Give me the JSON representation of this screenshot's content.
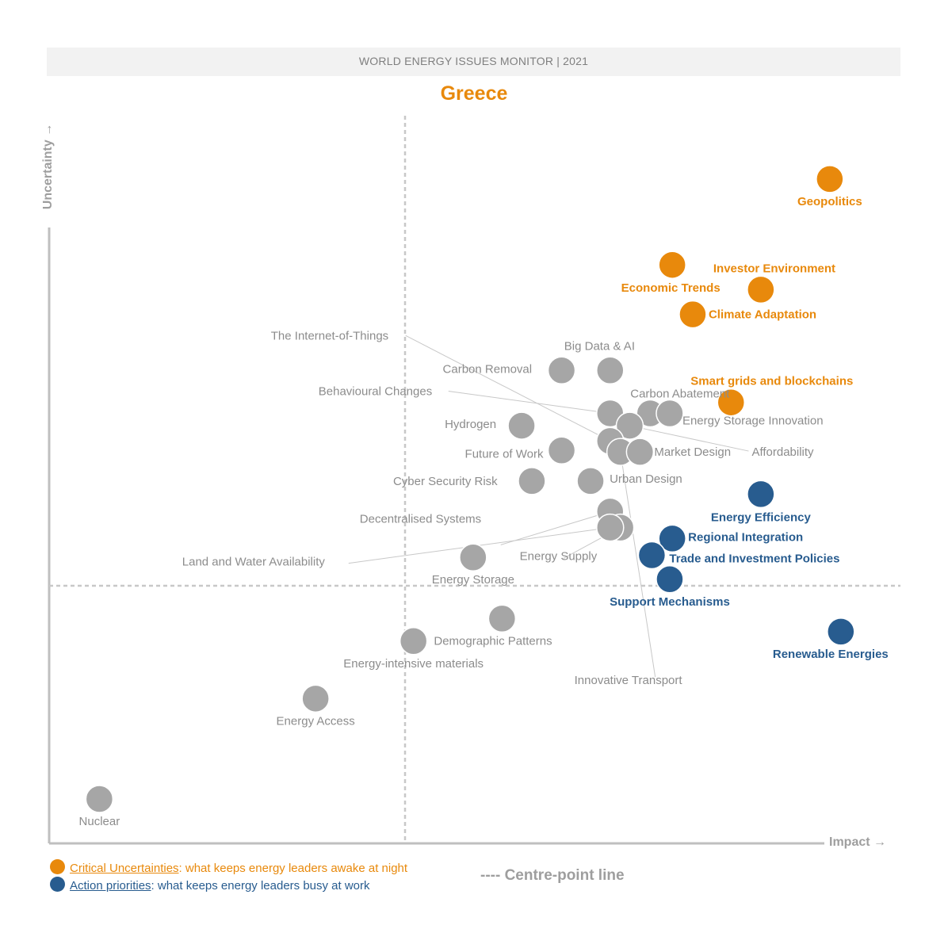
{
  "header": {
    "banner": "WORLD ENERGY ISSUES MONITOR | 2021",
    "country": "Greece"
  },
  "axes": {
    "y_label": "Uncertainty →",
    "x_label": "Impact →"
  },
  "legend": {
    "critical": {
      "label": "Critical Uncertainties",
      "desc": ": what keeps energy leaders awake at night"
    },
    "action": {
      "label": "Action priorities",
      "desc": ": what keeps energy leaders busy at work"
    },
    "centre_line": "---- Centre-point line"
  },
  "colors": {
    "critical": "#e8890c",
    "action": "#285c8f",
    "neutral": "#a6a6a6",
    "neutral_text": "#8c8c8c",
    "axis": "#bfbfbf"
  },
  "chart_data": {
    "type": "scatter",
    "title": "Greece",
    "xlabel": "Impact",
    "ylabel": "Uncertainty",
    "xlim": [
      0,
      100
    ],
    "ylim": [
      0,
      100
    ],
    "centre_point": {
      "x": 41.4,
      "y": 36.5
    },
    "points": [
      {
        "name": "Geopolitics",
        "x": 91.7,
        "y": 91.3,
        "group": "critical"
      },
      {
        "name": "Economic Trends",
        "x": 73.2,
        "y": 79.5,
        "group": "critical"
      },
      {
        "name": "Investor Environment",
        "x": 83.6,
        "y": 76.1,
        "group": "critical"
      },
      {
        "name": "Climate Adaptation",
        "x": 75.6,
        "y": 72.7,
        "group": "critical"
      },
      {
        "name": "Smart grids and blockchains",
        "x": 80.1,
        "y": 60.6,
        "group": "critical"
      },
      {
        "name": "Big Data & AI",
        "x": 65.9,
        "y": 65.0,
        "group": "neutral"
      },
      {
        "name": "Carbon Removal",
        "x": 60.2,
        "y": 65.0,
        "group": "neutral"
      },
      {
        "name": "Carbon Abatement",
        "x": 70.6,
        "y": 59.1,
        "group": "neutral"
      },
      {
        "name": "Energy Storage Innovation",
        "x": 72.9,
        "y": 59.1,
        "group": "neutral"
      },
      {
        "name": "Behavioural Changes",
        "x": 65.9,
        "y": 59.1,
        "group": "neutral"
      },
      {
        "name": "Hydrogen",
        "x": 55.5,
        "y": 57.4,
        "group": "neutral"
      },
      {
        "name": "Affordability",
        "x": 68.2,
        "y": 57.4,
        "group": "neutral"
      },
      {
        "name": "The Internet-of-Things",
        "x": 65.9,
        "y": 55.3,
        "group": "neutral"
      },
      {
        "name": "Future of Work",
        "x": 60.2,
        "y": 54.0,
        "group": "neutral"
      },
      {
        "name": "Innovative Transport",
        "x": 67.1,
        "y": 53.8,
        "group": "neutral"
      },
      {
        "name": "Market Design",
        "x": 69.4,
        "y": 53.8,
        "group": "neutral"
      },
      {
        "name": "Cyber Security Risk",
        "x": 56.7,
        "y": 49.8,
        "group": "neutral"
      },
      {
        "name": "Urban Design",
        "x": 63.6,
        "y": 49.8,
        "group": "neutral"
      },
      {
        "name": "Decentralised Systems",
        "x": 65.9,
        "y": 45.6,
        "group": "neutral"
      },
      {
        "name": "Energy Supply",
        "x": 67.1,
        "y": 43.4,
        "group": "neutral"
      },
      {
        "name": "Land and Water Availability",
        "x": 65.9,
        "y": 43.4,
        "group": "neutral"
      },
      {
        "name": "Energy Storage",
        "x": 49.8,
        "y": 39.3,
        "group": "neutral"
      },
      {
        "name": "Demographic Patterns",
        "x": 53.2,
        "y": 30.9,
        "group": "neutral"
      },
      {
        "name": "Energy-intensive materials",
        "x": 42.8,
        "y": 27.8,
        "group": "neutral"
      },
      {
        "name": "Energy Access",
        "x": 31.3,
        "y": 19.9,
        "group": "neutral"
      },
      {
        "name": "Nuclear",
        "x": 5.9,
        "y": 6.1,
        "group": "neutral"
      },
      {
        "name": "Energy Efficiency",
        "x": 83.6,
        "y": 48.0,
        "group": "action"
      },
      {
        "name": "Regional Integration",
        "x": 73.2,
        "y": 41.9,
        "group": "action"
      },
      {
        "name": "Trade and Investment Policies",
        "x": 70.8,
        "y": 39.6,
        "group": "action"
      },
      {
        "name": "Support Mechanisms",
        "x": 72.9,
        "y": 36.3,
        "group": "action"
      },
      {
        "name": "Renewable Energies",
        "x": 93.0,
        "y": 29.1,
        "group": "action"
      }
    ]
  }
}
